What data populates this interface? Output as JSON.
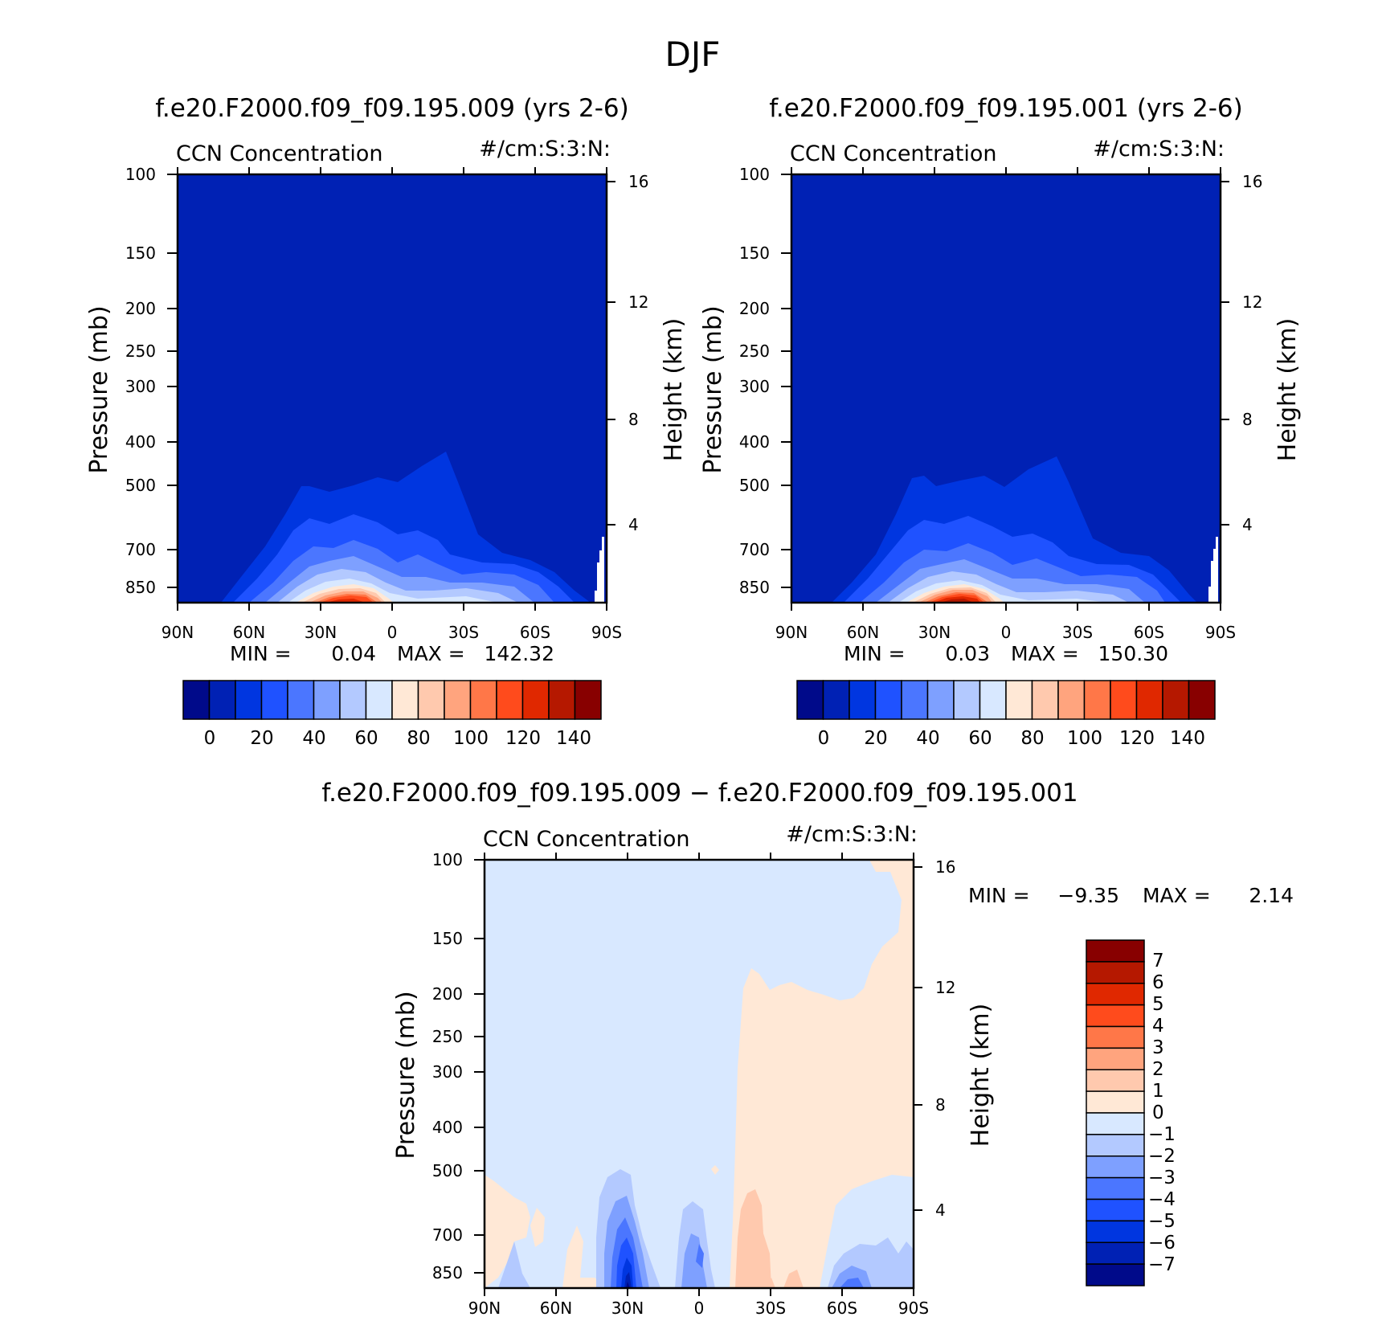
{
  "figure": {
    "title": "DJF"
  },
  "colors": {
    "abs_palette": [
      "#000a8a",
      "#0021b4",
      "#0036e0",
      "#1f52ff",
      "#4b76ff",
      "#7ea0ff",
      "#b3c9ff",
      "#d8e8ff",
      "#ffe8d6",
      "#ffc9ae",
      "#ffa47e",
      "#ff7748",
      "#ff4b1c",
      "#e02800",
      "#b51800",
      "#880000"
    ],
    "diff_palette": [
      "#000a8a",
      "#0021b4",
      "#0036e0",
      "#1f52ff",
      "#4b76ff",
      "#7ea0ff",
      "#b3c9ff",
      "#d8e8ff",
      "#ffe8d6",
      "#ffc9ae",
      "#ffa47e",
      "#ff7748",
      "#ff4b1c",
      "#e02800",
      "#b51800",
      "#880000"
    ]
  },
  "chart_data": [
    {
      "type": "heatmap",
      "title": "f.e20.F2000.f09_f09.195.009 (yrs 2-6)",
      "left_label": "CCN Concentration",
      "right_label": "#/cm:S:3:N:",
      "xlabel": "",
      "ylabel": "Pressure (mb)",
      "ylabel_right": "Height (km)",
      "x_ticks": [
        "90N",
        "60N",
        "30N",
        "0",
        "30S",
        "60S",
        "90S"
      ],
      "y_ticks": [
        100,
        150,
        200,
        250,
        300,
        400,
        500,
        700,
        850
      ],
      "y_ticks_right": [
        16,
        12,
        8,
        4
      ],
      "stats": {
        "min_label": "MIN =",
        "min": "0.04",
        "max_label": "MAX =",
        "max": "142.32"
      },
      "colorbar_ticks": [
        "0",
        "20",
        "40",
        "60",
        "80",
        "100",
        "120",
        "140"
      ]
    },
    {
      "type": "heatmap",
      "title": "f.e20.F2000.f09_f09.195.001 (yrs 2-6)",
      "left_label": "CCN Concentration",
      "right_label": "#/cm:S:3:N:",
      "xlabel": "",
      "ylabel": "Pressure (mb)",
      "ylabel_right": "Height (km)",
      "x_ticks": [
        "90N",
        "60N",
        "30N",
        "0",
        "30S",
        "60S",
        "90S"
      ],
      "y_ticks": [
        100,
        150,
        200,
        250,
        300,
        400,
        500,
        700,
        850
      ],
      "y_ticks_right": [
        16,
        12,
        8,
        4
      ],
      "stats": {
        "min_label": "MIN =",
        "min": "0.03",
        "max_label": "MAX =",
        "max": "150.30"
      },
      "colorbar_ticks": [
        "0",
        "20",
        "40",
        "60",
        "80",
        "100",
        "120",
        "140"
      ]
    },
    {
      "type": "heatmap",
      "title": "f.e20.F2000.f09_f09.195.009 − f.e20.F2000.f09_f09.195.001",
      "left_label": "CCN Concentration",
      "right_label": "#/cm:S:3:N:",
      "xlabel": "",
      "ylabel": "Pressure (mb)",
      "ylabel_right": "Height (km)",
      "x_ticks": [
        "90N",
        "60N",
        "30N",
        "0",
        "30S",
        "60S",
        "90S"
      ],
      "y_ticks": [
        100,
        150,
        200,
        250,
        300,
        400,
        500,
        700,
        850
      ],
      "y_ticks_right": [
        16,
        12,
        8,
        4
      ],
      "stats": {
        "min_label": "MIN =",
        "min": "−9.35",
        "max_label": "MAX =",
        "max": "2.14"
      },
      "colorbar_ticks": [
        "7",
        "6",
        "5",
        "4",
        "3",
        "2",
        "1",
        "0",
        "−1",
        "−2",
        "−3",
        "−4",
        "−5",
        "−6",
        "−7"
      ]
    }
  ]
}
